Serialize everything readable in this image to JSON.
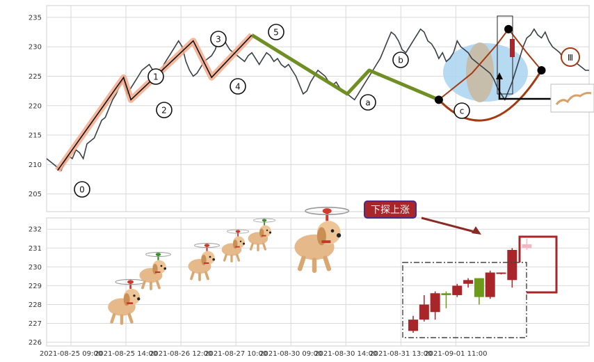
{
  "chart_data": [
    {
      "type": "line",
      "panel": "top",
      "ylim": [
        202,
        237
      ],
      "yticks": [
        205,
        210,
        215,
        220,
        225,
        230,
        235
      ],
      "grid": true,
      "price_line": {
        "color": "#3a3f47",
        "x": [
          0.0,
          0.05,
          0.1,
          0.15,
          0.2,
          0.25,
          0.3,
          0.35,
          0.4,
          0.45,
          0.5,
          0.55,
          0.6,
          0.65,
          0.7,
          0.75,
          0.8,
          0.85,
          0.9,
          0.95,
          1.0,
          1.05,
          1.1,
          1.15,
          1.2,
          1.25,
          1.3,
          1.35,
          1.4,
          1.45,
          1.5,
          1.55,
          1.6,
          1.65,
          1.7,
          1.75,
          1.8,
          1.85,
          1.9,
          1.95,
          2.0,
          2.05,
          2.1,
          2.15,
          2.2,
          2.25,
          2.3,
          2.35,
          2.4,
          2.45,
          2.5,
          2.55,
          2.6,
          2.65,
          2.7,
          2.75,
          2.8,
          2.85,
          2.9,
          2.95,
          3.0,
          3.05,
          3.1,
          3.15,
          3.2,
          3.25,
          3.3,
          3.35,
          3.4,
          3.45,
          3.5,
          3.55,
          3.6,
          3.65,
          3.7,
          3.75,
          3.8,
          3.85,
          3.9,
          3.95,
          4.0,
          4.05,
          4.1,
          4.15,
          4.2,
          4.25,
          4.3,
          4.35,
          4.4,
          4.45,
          4.5,
          4.55,
          4.6,
          4.65,
          4.7,
          4.75,
          4.8,
          4.85,
          4.9,
          4.95,
          5.0,
          5.05,
          5.1,
          5.15,
          5.2,
          5.25,
          5.3,
          5.35,
          5.4,
          5.45,
          5.5,
          5.55,
          5.6,
          5.65,
          5.7,
          5.75,
          5.8,
          5.85,
          5.9,
          5.95,
          6.0,
          6.05,
          6.1,
          6.15,
          6.2,
          6.25,
          6.3,
          6.35,
          6.4,
          6.45,
          6.5,
          6.55,
          6.6,
          6.65,
          6.7,
          6.75,
          6.8,
          6.85,
          6.9,
          6.95,
          7.0,
          7.05,
          7.1,
          7.15,
          7.2,
          7.25,
          7.3,
          7.35,
          7.4
        ],
        "y": [
          211.0,
          210.5,
          210.0,
          209.5,
          209.0,
          210.5,
          211.5,
          211.0,
          212.5,
          212.0,
          211.0,
          213.5,
          214.0,
          214.5,
          216.0,
          217.5,
          218.0,
          219.5,
          221.0,
          222.0,
          223.5,
          224.5,
          222.0,
          223.0,
          224.0,
          225.0,
          226.0,
          226.5,
          227.0,
          226.0,
          225.5,
          224.0,
          227.0,
          228.0,
          229.0,
          230.0,
          231.0,
          230.0,
          227.5,
          226.0,
          225.0,
          225.5,
          226.5,
          227.5,
          228.0,
          228.5,
          229.5,
          231.5,
          232.0,
          230.5,
          229.5,
          229.0,
          228.5,
          228.0,
          227.5,
          228.5,
          229.0,
          228.0,
          227.0,
          228.0,
          229.0,
          228.5,
          227.5,
          228.0,
          227.0,
          226.5,
          227.0,
          226.0,
          225.0,
          223.5,
          222.0,
          222.5,
          224.0,
          225.0,
          226.0,
          225.5,
          225.0,
          224.0,
          223.5,
          224.0,
          223.0,
          222.5,
          222.0,
          221.5,
          221.0,
          222.0,
          223.0,
          224.0,
          225.0,
          226.0,
          227.0,
          228.0,
          229.5,
          231.0,
          232.5,
          232.0,
          231.0,
          229.5,
          229.0,
          230.0,
          231.0,
          232.0,
          233.0,
          232.5,
          231.0,
          230.5,
          229.5,
          228.0,
          229.0,
          227.5,
          228.0,
          229.0,
          231.0,
          230.0,
          229.5,
          229.0,
          228.0,
          227.5,
          227.0,
          226.5,
          226.0,
          225.5,
          224.5,
          223.0,
          222.0,
          221.0,
          222.5,
          224.0,
          226.0,
          228.0,
          230.0,
          231.5,
          232.0,
          233.0,
          232.0,
          231.5,
          232.5,
          231.0,
          230.0,
          229.5,
          229.0,
          228.0,
          227.0,
          227.0,
          227.5,
          227.0,
          226.5,
          226.0,
          226.0
        ]
      },
      "wave_up": {
        "points": [
          [
            0.15,
            209.0
          ],
          [
            1.05,
            224.8
          ],
          [
            1.15,
            221.0
          ],
          [
            2.0,
            231.0
          ],
          [
            2.25,
            224.8
          ],
          [
            2.8,
            232.0
          ]
        ],
        "labels": [
          "0",
          "1",
          "2",
          "3",
          "4",
          "5"
        ],
        "label_offsets": [
          [
            0,
            -3.2
          ],
          [
            0,
            0.5
          ],
          [
            0.05,
            0.5
          ],
          [
            0,
            -0.5
          ],
          [
            0,
            0.5
          ],
          [
            0,
            0.5
          ]
        ]
      },
      "wave_down": {
        "points": [
          [
            2.8,
            232.0
          ],
          [
            4.1,
            222.0
          ],
          [
            4.4,
            226.0
          ],
          [
            5.35,
            221.0
          ]
        ],
        "labels": [
          "a",
          "b",
          "c"
        ]
      },
      "forecast": {
        "points": [
          [
            5.35,
            221.0
          ],
          [
            5.8,
            225.5
          ],
          [
            6.15,
            230.5
          ],
          [
            6.3,
            233.0
          ],
          [
            6.55,
            229.0
          ],
          [
            6.75,
            226.0
          ]
        ],
        "label": "Ⅲ"
      }
    },
    {
      "type": "bar",
      "panel": "bottom",
      "ylim": [
        225.8,
        232.6
      ],
      "yticks": [
        226,
        227,
        228,
        229,
        230,
        231,
        232
      ],
      "grid": true,
      "candles": [
        {
          "x": 5.0,
          "open": 227.2,
          "close": 226.6,
          "high": 227.4,
          "low": 226.5,
          "color": "#a8262a"
        },
        {
          "x": 5.15,
          "open": 227.2,
          "close": 228.0,
          "high": 228.5,
          "low": 227.1,
          "color": "#a8262a"
        },
        {
          "x": 5.3,
          "open": 227.6,
          "close": 228.6,
          "high": 228.7,
          "low": 227.2,
          "color": "#a8262a"
        },
        {
          "x": 5.45,
          "open": 228.6,
          "close": 228.5,
          "high": 228.7,
          "low": 227.8,
          "color": "#6d9a1d"
        },
        {
          "x": 5.6,
          "open": 228.5,
          "close": 229.0,
          "high": 229.1,
          "low": 228.4,
          "color": "#a8262a"
        },
        {
          "x": 5.75,
          "open": 229.1,
          "close": 229.3,
          "high": 229.4,
          "low": 228.9,
          "color": "#a8262a"
        },
        {
          "x": 5.9,
          "open": 229.4,
          "close": 228.4,
          "high": 229.4,
          "low": 228.0,
          "color": "#6d9a1d"
        },
        {
          "x": 6.05,
          "open": 228.4,
          "close": 229.7,
          "high": 229.8,
          "low": 228.3,
          "color": "#a8262a"
        },
        {
          "x": 6.2,
          "open": 229.7,
          "close": 229.7,
          "high": 229.7,
          "low": 229.6,
          "color": "#a8262a"
        },
        {
          "x": 6.35,
          "open": 229.3,
          "close": 230.9,
          "high": 231.0,
          "low": 228.9,
          "color": "#a8262a"
        },
        {
          "x": 6.55,
          "open": 231.0,
          "close": 231.2,
          "high": 231.5,
          "low": 230.9,
          "color": "#f4b6c2"
        }
      ],
      "callout": {
        "text": "下探上涨"
      }
    }
  ],
  "xaxis": {
    "labels": [
      "2021-08-25 09:00",
      "2021-08-25 14:00",
      "2021-08-26 12:00",
      "2021-08-27 10:00",
      "2021-08-30 09:00",
      "2021-08-30 14:00",
      "2021-08-31 13:00",
      "2021-09-01 11:00"
    ],
    "values": [
      0,
      0.75,
      1.5,
      2.25,
      3.0,
      3.75,
      4.5,
      5.25
    ]
  },
  "colors": {
    "grid": "#d9d9d9",
    "wave_up_band": "#f4a98a",
    "wave_up_line": "#111111",
    "wave_down": "#6f8f24",
    "forecast": "#a33a12",
    "ellipse_blue": "#a9d3ef",
    "ellipse_tan": "#c9b9a3",
    "callout_bg": "#a8262a",
    "callout_border": "#4a2a8a",
    "box_dash": "#444444",
    "box_red": "#a8262a"
  },
  "decorations": {
    "flying_dogs": "cartoon-golden-retriever-with-propeller-icon"
  }
}
